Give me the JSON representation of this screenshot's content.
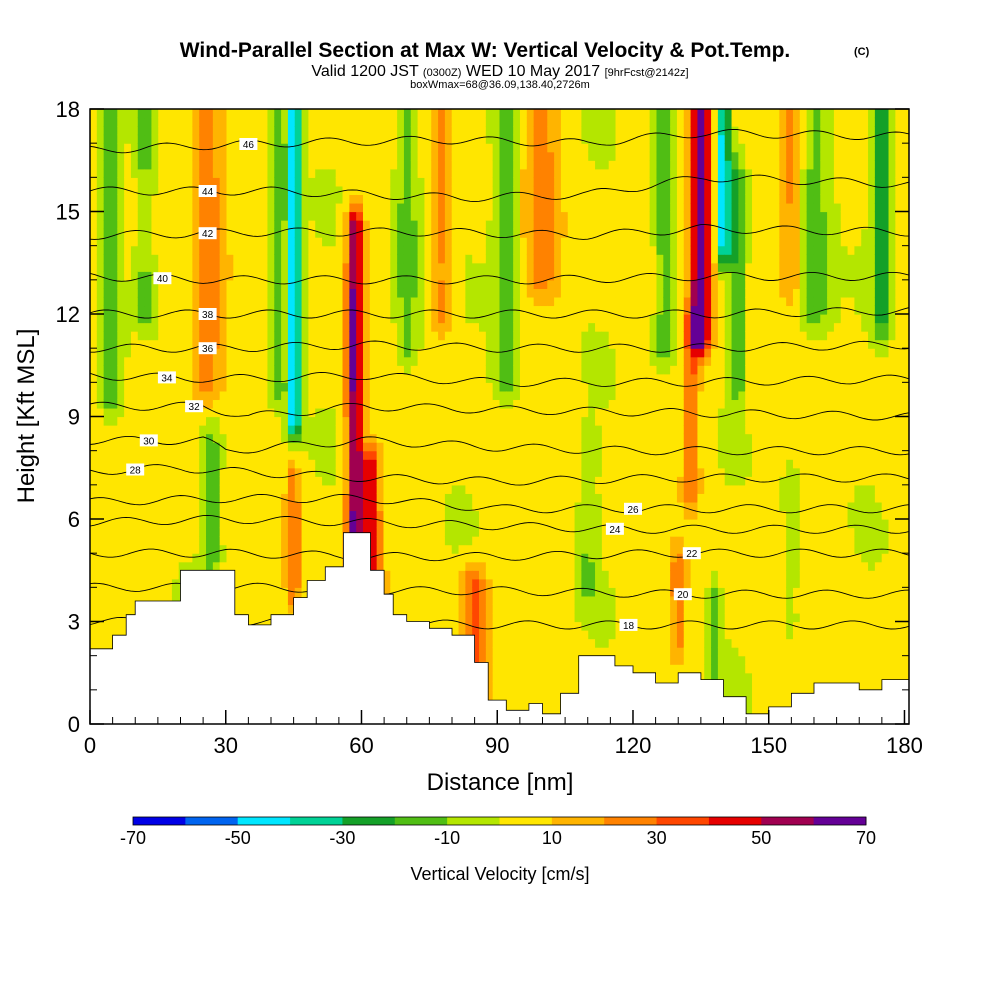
{
  "chart_data": {
    "type": "heatmap",
    "title": "Wind-Parallel Section at Max W: Vertical Velocity & Pot.Temp.",
    "title_tag": "(C)",
    "subtitle_main": "Valid 1200 JST",
    "subtitle_utc": "(0300Z)",
    "subtitle_date": "WED 10 May 2017",
    "subtitle_fcst": "[9hrFcst@2142z]",
    "subtitle2": "boxWmax=68@36.09,138.40,2726m",
    "xlabel": "Distance [nm]",
    "ylabel": "Height [Kft MSL]",
    "xlim": [
      0,
      181
    ],
    "ylim": [
      0,
      18
    ],
    "xticks": [
      0,
      30,
      60,
      90,
      120,
      150,
      180
    ],
    "yticks": [
      0,
      3,
      6,
      9,
      12,
      15,
      18
    ],
    "colorbar": {
      "label": "Vertical Velocity [cm/s]",
      "range": [
        -70,
        70
      ],
      "step": 10,
      "tick_values": [
        -70,
        -50,
        -30,
        -10,
        10,
        30,
        50,
        70
      ],
      "colors": [
        "#0000e6",
        "#0064f0",
        "#00e6ff",
        "#00d296",
        "#14a028",
        "#50be14",
        "#b4e600",
        "#ffe600",
        "#ffb400",
        "#ff8200",
        "#ff4600",
        "#e60000",
        "#a00050",
        "#640096"
      ]
    },
    "terrain_kft": [
      [
        0,
        2.2
      ],
      [
        5,
        2.6
      ],
      [
        8,
        3.2
      ],
      [
        10,
        3.6
      ],
      [
        16,
        3.6
      ],
      [
        20,
        4.5
      ],
      [
        30,
        4.5
      ],
      [
        32,
        3.2
      ],
      [
        35,
        2.9
      ],
      [
        40,
        3.2
      ],
      [
        45,
        3.7
      ],
      [
        48,
        4.2
      ],
      [
        52,
        4.6
      ],
      [
        56,
        5.6
      ],
      [
        60,
        5.6
      ],
      [
        62,
        4.5
      ],
      [
        65,
        3.8
      ],
      [
        67,
        3.2
      ],
      [
        70,
        3.0
      ],
      [
        75,
        2.8
      ],
      [
        80,
        2.6
      ],
      [
        85,
        1.8
      ],
      [
        88,
        0.7
      ],
      [
        92,
        0.4
      ],
      [
        97,
        0.6
      ],
      [
        100,
        0.3
      ],
      [
        104,
        0.9
      ],
      [
        108,
        2.0
      ],
      [
        112,
        2.0
      ],
      [
        116,
        1.7
      ],
      [
        120,
        1.5
      ],
      [
        125,
        1.2
      ],
      [
        130,
        1.5
      ],
      [
        135,
        1.3
      ],
      [
        140,
        0.8
      ],
      [
        145,
        0.3
      ],
      [
        150,
        0.5
      ],
      [
        155,
        0.9
      ],
      [
        160,
        1.2
      ],
      [
        165,
        1.2
      ],
      [
        170,
        1.0
      ],
      [
        175,
        1.3
      ],
      [
        181,
        1.3
      ]
    ],
    "w_features": [
      {
        "x": 58.5,
        "y0": 4.0,
        "y1": 14.5,
        "sx": 1.8,
        "w": 60
      },
      {
        "x": 62,
        "y0": 4.0,
        "y1": 7.5,
        "sx": 2.0,
        "w": 45
      },
      {
        "x": 135,
        "y0": 11.5,
        "y1": 18.0,
        "sx": 2.2,
        "w": 70
      },
      {
        "x": 133,
        "y0": 7.0,
        "y1": 11.5,
        "sx": 1.8,
        "w": 25
      },
      {
        "x": 45,
        "y0": 9.0,
        "y1": 18.0,
        "sx": 1.6,
        "w": -55
      },
      {
        "x": 41,
        "y0": 10.0,
        "y1": 18.0,
        "sx": 1.4,
        "w": -22
      },
      {
        "x": 140,
        "y0": 14.0,
        "y1": 18.0,
        "sx": 1.4,
        "w": -48
      },
      {
        "x": 143,
        "y0": 10.0,
        "y1": 16.0,
        "sx": 1.5,
        "w": -22
      },
      {
        "x": 5,
        "y0": 9.5,
        "y1": 18.0,
        "sx": 2.8,
        "w": -22
      },
      {
        "x": 12,
        "y0": 12.0,
        "y1": 18.0,
        "sx": 2.2,
        "w": -18
      },
      {
        "x": 26,
        "y0": 10.0,
        "y1": 18.0,
        "sx": 3.5,
        "w": 25
      },
      {
        "x": 85,
        "y0": 1.0,
        "y1": 4.0,
        "sx": 3.0,
        "w": 32
      },
      {
        "x": 70,
        "y0": 11.0,
        "y1": 18.0,
        "sx": 3.0,
        "w": -20
      },
      {
        "x": 92,
        "y0": 10.0,
        "y1": 18.0,
        "sx": 3.0,
        "w": -20
      },
      {
        "x": 78,
        "y0": 12.0,
        "y1": 18.0,
        "sx": 2.5,
        "w": 20
      },
      {
        "x": 100,
        "y0": 13.0,
        "y1": 18.0,
        "sx": 4.0,
        "w": 18
      },
      {
        "x": 127,
        "y0": 11.0,
        "y1": 18.0,
        "sx": 2.5,
        "w": -22
      },
      {
        "x": 160,
        "y0": 12.0,
        "y1": 18.0,
        "sx": 4.0,
        "w": -20
      },
      {
        "x": 175,
        "y0": 12.0,
        "y1": 18.0,
        "sx": 2.0,
        "w": -28
      },
      {
        "x": 155,
        "y0": 13.0,
        "y1": 18.0,
        "sx": 2.5,
        "w": 18
      },
      {
        "x": 45,
        "y0": 4.0,
        "y1": 7.0,
        "sx": 1.5,
        "w": 25
      },
      {
        "x": 27,
        "y0": 5.0,
        "y1": 8.0,
        "sx": 2.0,
        "w": -20
      },
      {
        "x": 110,
        "y0": 4.0,
        "y1": 8.0,
        "sx": 2.0,
        "w": -12
      },
      {
        "x": 138,
        "y0": 1.0,
        "y1": 3.5,
        "sx": 1.5,
        "w": -18
      },
      {
        "x": 130,
        "y0": 2.5,
        "y1": 4.5,
        "sx": 1.5,
        "w": 22
      },
      {
        "x": 155,
        "y0": 3.0,
        "y1": 7.0,
        "sx": 2.0,
        "w": -12
      }
    ],
    "isentropes": [
      {
        "theta": 18,
        "label": "18",
        "label_x": 119,
        "pts": [
          [
            0,
            3.0
          ],
          [
            40,
            3.0
          ],
          [
            90,
            2.9
          ],
          [
            120,
            2.9
          ],
          [
            150,
            2.9
          ],
          [
            181,
            2.9
          ]
        ]
      },
      {
        "theta": 20,
        "label": "20",
        "label_x": 131,
        "pts": [
          [
            0,
            4.0
          ],
          [
            40,
            4.0
          ],
          [
            66,
            3.9
          ],
          [
            90,
            3.9
          ],
          [
            130,
            3.8
          ],
          [
            181,
            3.8
          ]
        ]
      },
      {
        "theta": 22,
        "label": "22",
        "label_x": 133,
        "pts": [
          [
            0,
            5.0
          ],
          [
            30,
            5.0
          ],
          [
            65,
            4.9
          ],
          [
            90,
            4.9
          ],
          [
            130,
            5.0
          ],
          [
            181,
            5.0
          ]
        ]
      },
      {
        "theta": 24,
        "label": "24",
        "label_x": 116,
        "pts": [
          [
            0,
            5.9
          ],
          [
            30,
            6.0
          ],
          [
            60,
            5.9
          ],
          [
            90,
            5.8
          ],
          [
            120,
            5.7
          ],
          [
            181,
            5.7
          ]
        ]
      },
      {
        "theta": 26,
        "label": "26",
        "label_x": 120,
        "pts": [
          [
            0,
            6.5
          ],
          [
            30,
            6.6
          ],
          [
            62,
            6.6
          ],
          [
            90,
            6.3
          ],
          [
            120,
            6.3
          ],
          [
            181,
            6.3
          ]
        ]
      },
      {
        "theta": 28,
        "label": "28",
        "label_x": 10,
        "pts": [
          [
            0,
            7.4
          ],
          [
            20,
            7.5
          ],
          [
            30,
            7.4
          ],
          [
            62,
            7.2
          ],
          [
            90,
            7.1
          ],
          [
            130,
            7.2
          ],
          [
            181,
            7.2
          ]
        ]
      },
      {
        "theta": 30,
        "label": "30",
        "label_x": 13,
        "pts": [
          [
            0,
            8.3
          ],
          [
            25,
            8.3
          ],
          [
            30,
            8.0
          ],
          [
            60,
            8.3
          ],
          [
            90,
            8.1
          ],
          [
            120,
            8.0
          ],
          [
            181,
            8.0
          ]
        ]
      },
      {
        "theta": 32,
        "label": "32",
        "label_x": 23,
        "pts": [
          [
            0,
            9.3
          ],
          [
            25,
            9.3
          ],
          [
            35,
            9.0
          ],
          [
            60,
            9.3
          ],
          [
            90,
            9.2
          ],
          [
            135,
            9.1
          ],
          [
            181,
            9.0
          ]
        ]
      },
      {
        "theta": 34,
        "label": "34",
        "label_x": 17,
        "pts": [
          [
            0,
            10.2
          ],
          [
            30,
            10.1
          ],
          [
            60,
            10.2
          ],
          [
            90,
            10.0
          ],
          [
            130,
            10.0
          ],
          [
            181,
            10.1
          ]
        ]
      },
      {
        "theta": 36,
        "label": "36",
        "label_x": 26,
        "pts": [
          [
            0,
            11.0
          ],
          [
            30,
            11.0
          ],
          [
            60,
            11.1
          ],
          [
            90,
            11.0
          ],
          [
            130,
            11.0
          ],
          [
            181,
            11.1
          ]
        ]
      },
      {
        "theta": 38,
        "label": "38",
        "label_x": 26,
        "pts": [
          [
            0,
            12.0
          ],
          [
            30,
            12.0
          ],
          [
            65,
            12.0
          ],
          [
            100,
            12.0
          ],
          [
            135,
            12.0
          ],
          [
            181,
            12.1
          ]
        ]
      },
      {
        "theta": 40,
        "label": "40",
        "label_x": 16,
        "pts": [
          [
            0,
            13.1
          ],
          [
            30,
            13.0
          ],
          [
            70,
            13.0
          ],
          [
            100,
            13.0
          ],
          [
            135,
            13.1
          ],
          [
            181,
            13.1
          ]
        ]
      },
      {
        "theta": 42,
        "label": "42",
        "label_x": 26,
        "pts": [
          [
            0,
            14.3
          ],
          [
            40,
            14.4
          ],
          [
            76,
            14.4
          ],
          [
            110,
            14.3
          ],
          [
            135,
            14.5
          ],
          [
            181,
            14.4
          ]
        ]
      },
      {
        "theta": 44,
        "label": "44",
        "label_x": 26,
        "pts": [
          [
            0,
            15.6
          ],
          [
            40,
            15.6
          ],
          [
            82,
            15.4
          ],
          [
            110,
            15.5
          ],
          [
            136,
            16.0
          ],
          [
            181,
            15.8
          ]
        ]
      },
      {
        "theta": 46,
        "label": "46",
        "label_x": 35,
        "pts": [
          [
            0,
            16.8
          ],
          [
            40,
            17.0
          ],
          [
            78,
            17.1
          ],
          [
            110,
            17.0
          ],
          [
            135,
            17.3
          ],
          [
            181,
            17.2
          ]
        ]
      }
    ]
  }
}
